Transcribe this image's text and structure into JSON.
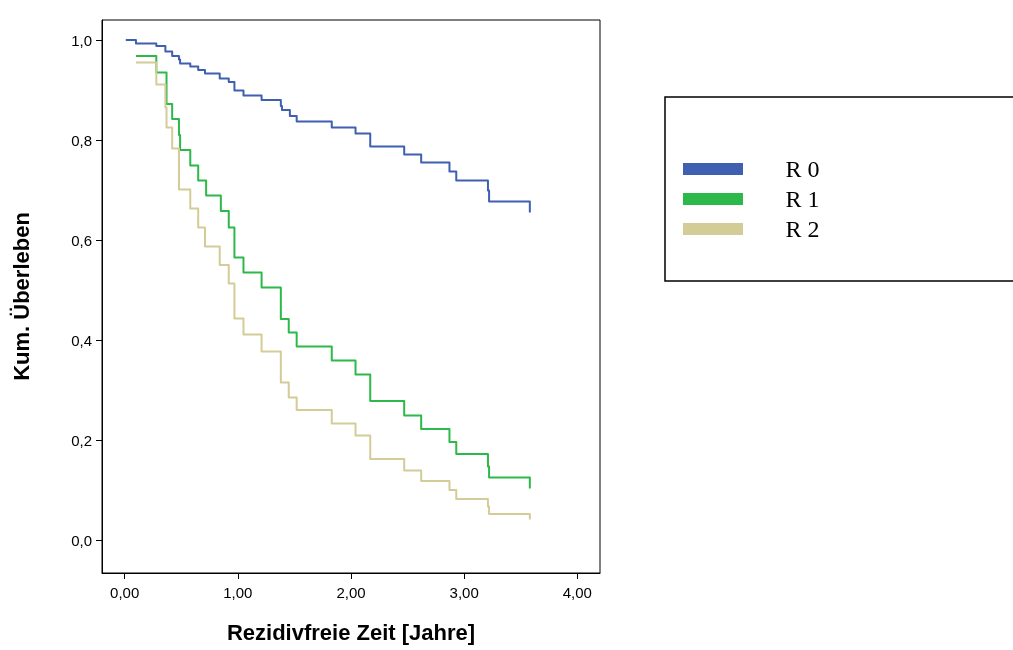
{
  "chart_data": {
    "type": "step",
    "xlabel": "Rezidivfreie Zeit [Jahre]",
    "ylabel": "Kum. Überleben",
    "xlim": [
      -0.2,
      4.2
    ],
    "ylim": [
      -0.066,
      1.04
    ],
    "xticks": [
      {
        "value": 0,
        "label": "0,00"
      },
      {
        "value": 1,
        "label": "1,00"
      },
      {
        "value": 2,
        "label": "2,00"
      },
      {
        "value": 3,
        "label": "3,00"
      },
      {
        "value": 4,
        "label": "4,00"
      }
    ],
    "yticks": [
      {
        "value": 0,
        "label": "0,0"
      },
      {
        "value": 0.2,
        "label": "0,2"
      },
      {
        "value": 0.4,
        "label": "0,4"
      },
      {
        "value": 0.6,
        "label": "0,6"
      },
      {
        "value": 0.8,
        "label": "0,8"
      },
      {
        "value": 1,
        "label": "1,0"
      }
    ],
    "grid": false,
    "legend": "right",
    "marker": "none",
    "line_style": "solid",
    "series": [
      {
        "name": "R 0",
        "color": "#3f5fb0",
        "x": [
          0.01,
          0.1,
          0.28,
          0.36,
          0.42,
          0.48,
          0.49,
          0.58,
          0.65,
          0.71,
          0.84,
          0.92,
          0.97,
          1.05,
          1.21,
          1.38,
          1.39,
          1.46,
          1.52,
          1.83,
          2.04,
          2.17,
          2.47,
          2.62,
          2.87,
          2.93,
          3.21,
          3.22,
          3.58
        ],
        "values": [
          1.0,
          0.993,
          0.988,
          0.977,
          0.968,
          0.961,
          0.953,
          0.947,
          0.94,
          0.933,
          0.923,
          0.916,
          0.899,
          0.889,
          0.88,
          0.868,
          0.86,
          0.848,
          0.837,
          0.825,
          0.813,
          0.787,
          0.771,
          0.755,
          0.737,
          0.719,
          0.699,
          0.677,
          0.655
        ]
      },
      {
        "name": "R 1",
        "color": "#2db84a",
        "x": [
          0.1,
          0.28,
          0.37,
          0.42,
          0.48,
          0.49,
          0.58,
          0.65,
          0.72,
          0.85,
          0.92,
          0.97,
          1.05,
          1.21,
          1.38,
          1.45,
          1.52,
          1.83,
          2.04,
          2.17,
          2.47,
          2.62,
          2.87,
          2.93,
          3.21,
          3.22,
          3.58
        ],
        "values": [
          0.968,
          0.935,
          0.872,
          0.842,
          0.81,
          0.78,
          0.749,
          0.719,
          0.689,
          0.658,
          0.625,
          0.565,
          0.535,
          0.505,
          0.442,
          0.415,
          0.387,
          0.359,
          0.331,
          0.278,
          0.249,
          0.222,
          0.196,
          0.172,
          0.147,
          0.125,
          0.103
        ]
      },
      {
        "name": "R 2",
        "color": "#d4cc96",
        "x": [
          0.1,
          0.28,
          0.36,
          0.37,
          0.42,
          0.48,
          0.58,
          0.65,
          0.71,
          0.84,
          0.92,
          0.97,
          1.05,
          1.21,
          1.38,
          1.45,
          1.52,
          1.83,
          2.04,
          2.17,
          2.47,
          2.62,
          2.87,
          2.93,
          3.21,
          3.22,
          3.58
        ],
        "values": [
          0.955,
          0.911,
          0.865,
          0.825,
          0.783,
          0.701,
          0.663,
          0.625,
          0.587,
          0.55,
          0.513,
          0.443,
          0.411,
          0.377,
          0.315,
          0.285,
          0.26,
          0.233,
          0.209,
          0.162,
          0.139,
          0.118,
          0.1,
          0.082,
          0.067,
          0.052,
          0.041
        ]
      }
    ]
  }
}
